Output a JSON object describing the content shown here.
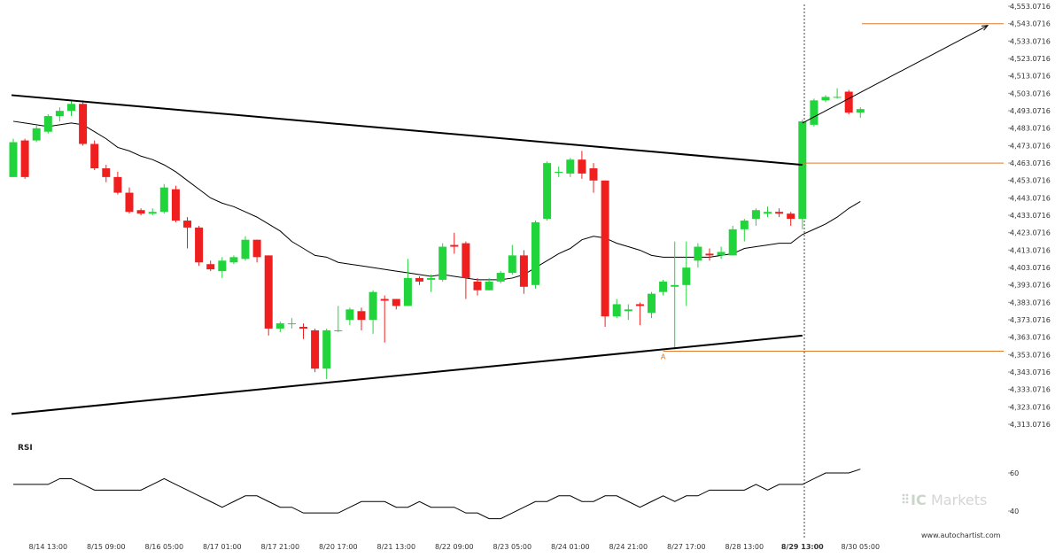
{
  "chart_data": {
    "type": "candlestick",
    "price_axis": {
      "labels": [
        "4,553.0716",
        "4,543.0716",
        "4,533.0716",
        "4,523.0716",
        "4,513.0716",
        "4,503.0716",
        "4,493.0716",
        "4,483.0716",
        "4,473.0716",
        "4,463.0716",
        "4,453.0716",
        "4,443.0716",
        "4,433.0716",
        "4,423.0716",
        "4,413.0716",
        "4,403.0716",
        "4,393.0716",
        "4,383.0716",
        "4,373.0716",
        "4,363.0716",
        "4,353.0716",
        "4,343.0716",
        "4,333.0716",
        "4,323.0716",
        "4,313.0716"
      ],
      "min": 4313.0716,
      "max": 4553.0716,
      "step": 10
    },
    "time_axis": {
      "labels": [
        "8/14 13:00",
        "8/15 09:00",
        "8/16 05:00",
        "8/17 01:00",
        "8/17 21:00",
        "8/20 17:00",
        "8/21 13:00",
        "8/22 09:00",
        "8/23 05:00",
        "8/24 01:00",
        "8/24 21:00",
        "8/27 17:00",
        "8/28 13:00",
        "8/29 13:00",
        "8/30 05:00"
      ],
      "highlighted": "8/29 13:00",
      "bars_per_label": 5
    },
    "candles": [
      [
        4455,
        4475,
        4455,
        4477
      ],
      [
        4476,
        4455,
        4454,
        4477
      ],
      [
        4476,
        4483,
        4475,
        4485
      ],
      [
        4481,
        4490,
        4480,
        4491
      ],
      [
        4490,
        4493,
        4487,
        4495
      ],
      [
        4493,
        4497,
        4490,
        4499
      ],
      [
        4497,
        4474,
        4473,
        4499
      ],
      [
        4474,
        4460,
        4459,
        4476
      ],
      [
        4460,
        4455,
        4452,
        4462
      ],
      [
        4455,
        4446,
        4445,
        4458
      ],
      [
        4446,
        4435,
        4434,
        4449
      ],
      [
        4436,
        4434,
        4433,
        4437
      ],
      [
        4434,
        4435,
        4433,
        4437
      ],
      [
        4435,
        4449,
        4434,
        4451
      ],
      [
        4448,
        4430,
        4429,
        4450
      ],
      [
        4430,
        4426,
        4414,
        4432
      ],
      [
        4426,
        4406,
        4404,
        4427
      ],
      [
        4405,
        4402,
        4401,
        4407
      ],
      [
        4401,
        4407,
        4397,
        4409
      ],
      [
        4406,
        4409,
        4405,
        4410
      ],
      [
        4408,
        4419,
        4407,
        4421
      ],
      [
        4419,
        4409,
        4406,
        4419
      ],
      [
        4410,
        4368,
        4364,
        4410
      ],
      [
        4368,
        4371,
        4366,
        4372
      ],
      [
        4371,
        4371,
        4368,
        4374
      ],
      [
        4369,
        4368,
        4362,
        4371
      ],
      [
        4367,
        4345,
        4343,
        4368
      ],
      [
        4345,
        4367,
        4339,
        4368
      ],
      [
        4367,
        4367,
        4366,
        4381
      ],
      [
        4373,
        4379,
        4370,
        4380
      ],
      [
        4378,
        4373,
        4367,
        4380
      ],
      [
        4373,
        4389,
        4365,
        4390
      ],
      [
        4385,
        4384,
        4360,
        4387
      ],
      [
        4385,
        4381,
        4379,
        4385
      ],
      [
        4381,
        4397,
        4381,
        4408
      ],
      [
        4397,
        4395,
        4393,
        4398
      ],
      [
        4396,
        4397,
        4389,
        4399
      ],
      [
        4396,
        4415,
        4395,
        4417
      ],
      [
        4416,
        4415,
        4411,
        4423
      ],
      [
        4417,
        4397,
        4385,
        4418
      ],
      [
        4395,
        4390,
        4387,
        4397
      ],
      [
        4390,
        4395,
        4390,
        4397
      ],
      [
        4395,
        4400,
        4394,
        4401
      ],
      [
        4400,
        4410,
        4399,
        4416
      ],
      [
        4410,
        4392,
        4388,
        4413
      ],
      [
        4393,
        4429,
        4391,
        4430
      ],
      [
        4431,
        4463,
        4430,
        4464
      ],
      [
        4458,
        4458,
        4455,
        4461
      ],
      [
        4457,
        4465,
        4455,
        4466
      ],
      [
        4465,
        4457,
        4454,
        4470
      ],
      [
        4460,
        4453,
        4446,
        4463
      ],
      [
        4453,
        4375,
        4369,
        4453
      ],
      [
        4375,
        4382,
        4374,
        4385
      ],
      [
        4378,
        4379,
        4373,
        4382
      ],
      [
        4382,
        4381,
        4370,
        4383
      ],
      [
        4377,
        4388,
        4374,
        4389
      ],
      [
        4389,
        4395,
        4387,
        4396
      ],
      [
        4392,
        4393,
        4356,
        4418
      ],
      [
        4393,
        4403,
        4381,
        4418
      ],
      [
        4407,
        4415,
        4403,
        4417
      ],
      [
        4411,
        4410,
        4407,
        4414
      ],
      [
        4410,
        4412,
        4408,
        4415
      ],
      [
        4410,
        4425,
        4410,
        4427
      ],
      [
        4425,
        4430,
        4418,
        4431
      ],
      [
        4431,
        4436,
        4427,
        4437
      ],
      [
        4434,
        4435,
        4432,
        4438
      ],
      [
        4435,
        4434,
        4432,
        4437
      ],
      [
        4434,
        4431,
        4427,
        4435
      ],
      [
        4431,
        4487,
        4425,
        4488
      ],
      [
        4485,
        4499,
        4484,
        4500
      ],
      [
        4499,
        4501,
        4498,
        4502
      ],
      [
        4501,
        4501,
        4500,
        4506
      ],
      [
        4504,
        4492,
        4491,
        4505
      ],
      [
        4492,
        4494,
        4489,
        4495
      ]
    ],
    "moving_average": [
      4487,
      4486,
      4485,
      4484,
      4485,
      4486,
      4485,
      4481,
      4477,
      4472,
      4470,
      4467,
      4465,
      4462,
      4458,
      4453,
      4448,
      4443,
      4440,
      4438,
      4435,
      4432,
      4428,
      4424,
      4418,
      4414,
      4410,
      4409,
      4406,
      4405,
      4404,
      4403,
      4402,
      4401,
      4400,
      4399,
      4398,
      4399,
      4398,
      4397,
      4396,
      4396,
      4396,
      4397,
      4399,
      4403,
      4407,
      4411,
      4414,
      4419,
      4421,
      4420,
      4417,
      4415,
      4413,
      4410,
      4409,
      4409,
      4409,
      4409,
      4409,
      4410,
      4411,
      4414,
      4415,
      4416,
      4417,
      4417,
      4422,
      4425,
      4428,
      4432,
      4437,
      4441
    ],
    "rsi": {
      "title": "RSI",
      "labels": [
        "60",
        "40"
      ],
      "values": [
        54,
        54,
        54,
        54,
        57,
        57,
        54,
        51,
        51,
        51,
        51,
        51,
        54,
        57,
        54,
        51,
        48,
        45,
        42,
        45,
        48,
        48,
        45,
        42,
        42,
        39,
        39,
        39,
        39,
        42,
        45,
        45,
        45,
        42,
        42,
        45,
        42,
        42,
        42,
        39,
        39,
        36,
        36,
        39,
        42,
        45,
        45,
        48,
        48,
        45,
        45,
        48,
        48,
        45,
        42,
        45,
        48,
        45,
        48,
        48,
        51,
        51,
        51,
        51,
        54,
        51,
        54,
        54,
        54,
        57,
        60,
        60,
        60,
        62
      ]
    },
    "pattern": {
      "upper_trendline": [
        4502,
        4462
      ],
      "lower_trendline": [
        4319,
        4364
      ],
      "forecast_start": 4486,
      "forecast_end": 4542,
      "levels": [
        4543,
        4463,
        4355
      ],
      "marker": "A"
    },
    "colors": {
      "bull": "#22d43b",
      "bear": "#f01f1f",
      "level": "#e07a2c",
      "trendline": "#000000",
      "ma": "#000000"
    }
  },
  "brand": {
    "prefix": "IC",
    "name": "Markets"
  },
  "watermark": "www.autochartist.com"
}
